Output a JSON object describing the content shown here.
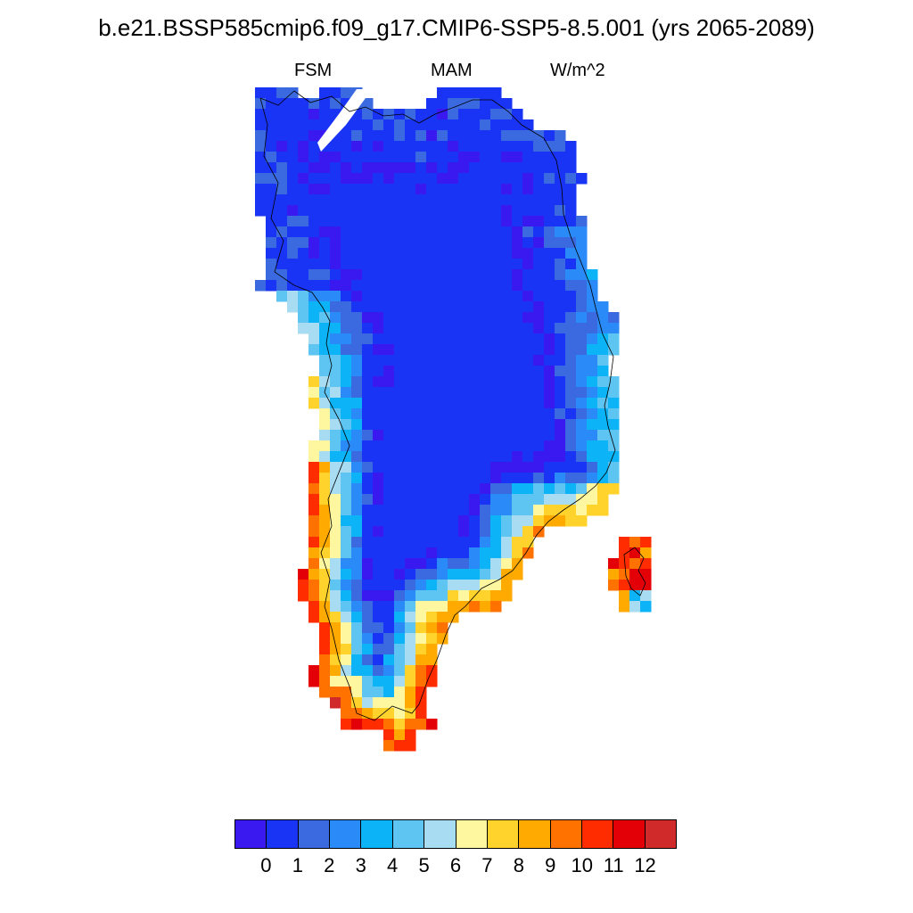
{
  "title": "b.e21.BSSP585cmip6.f09_g17.CMIP6-SSP5-8.5.001 (yrs 2065-2089)",
  "left_string": "FSM",
  "center_string": "MAM",
  "right_string": "W/m^2",
  "colorbar": {
    "colors": [
      "#3a18f0",
      "#1a34f5",
      "#3b6ae0",
      "#2a8af7",
      "#0cb4f7",
      "#5ec4f2",
      "#a8dcf2",
      "#fff7a0",
      "#ffd22c",
      "#ffaa00",
      "#ff7200",
      "#ff2c00",
      "#e30006",
      "#d12a2a"
    ],
    "labels": [
      "0",
      "1",
      "2",
      "3",
      "4",
      "5",
      "6",
      "7",
      "8",
      "9",
      "10",
      "11",
      "12"
    ]
  },
  "chart_data": {
    "type": "map",
    "region": "Greenland",
    "season": "MAM",
    "variable": "FSM",
    "units": "W/m^2",
    "levels": [
      0,
      1,
      2,
      3,
      4,
      5,
      6,
      7,
      8,
      9,
      10,
      11,
      12
    ],
    "pattern": {
      "interior_ice_sheet": "0-1",
      "northern_margin": "1-3",
      "east_coast": "3-7",
      "west_coast_mid": "7-9",
      "southwest_coast": "10-12+",
      "southern_tip": "12+",
      "southeast_coast": "9-12"
    }
  }
}
